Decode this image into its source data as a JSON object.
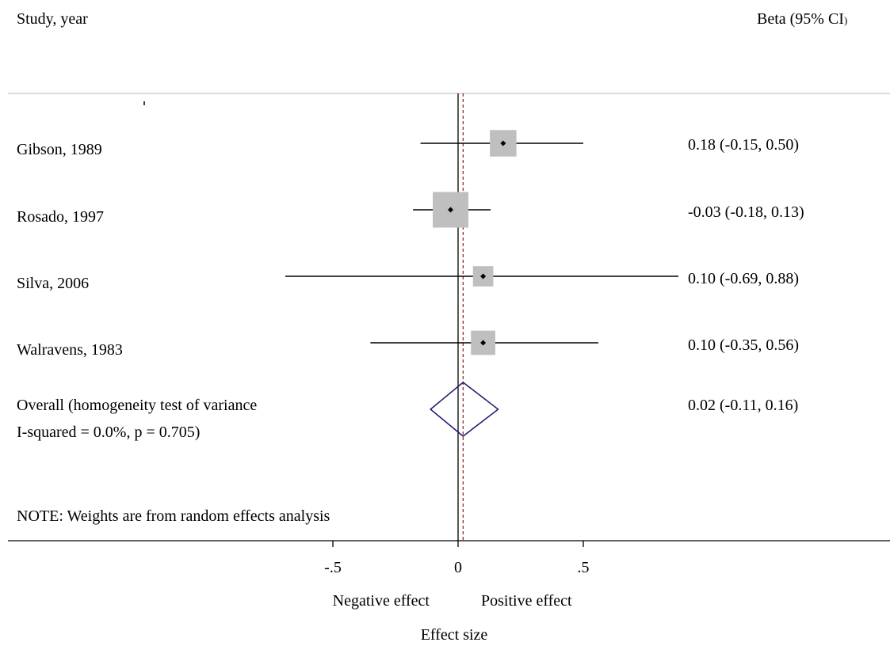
{
  "chart_data": {
    "type": "forest",
    "header_left": "Study, year",
    "header_right_main": "Beta (95% CI",
    "header_right_paren": ")",
    "studies": [
      {
        "label": "Gibson, 1989",
        "estimate": 0.18,
        "lower": -0.15,
        "upper": 0.5,
        "ci_text": "0.18 (-0.15, 0.50)",
        "weight_rel": 0.45
      },
      {
        "label": "Rosado, 1997",
        "estimate": -0.03,
        "lower": -0.18,
        "upper": 0.13,
        "ci_text": "-0.03 (-0.18, 0.13)",
        "weight_rel": 1.0
      },
      {
        "label": "Silva, 2006",
        "estimate": 0.1,
        "lower": -0.69,
        "upper": 0.88,
        "ci_text": "0.10 (-0.69, 0.88)",
        "weight_rel": 0.2
      },
      {
        "label": "Walravens, 1983",
        "estimate": 0.1,
        "lower": -0.35,
        "upper": 0.56,
        "ci_text": "0.10 (-0.35, 0.56)",
        "weight_rel": 0.35
      }
    ],
    "overall": {
      "label_line1": "Overall  (homogeneity test of variance",
      "label_line2": "I-squared  = 0.0%, p = 0.705)",
      "estimate": 0.02,
      "lower": -0.11,
      "upper": 0.16,
      "ci_text": "0.02 (-0.11, 0.16)"
    },
    "note": "NOTE: Weights are from random effects analysis",
    "xticks": [
      {
        "value": -0.5,
        "label": "-.5"
      },
      {
        "value": 0,
        "label": "0"
      },
      {
        "value": 0.5,
        "label": ".5"
      }
    ],
    "direction_left": "Negative effect",
    "direction_right": "Positive effect",
    "xlabel": "Effect size",
    "null_value": 0,
    "colors": {
      "box": "#bfbfbf",
      "diamond": "#1a1a6e",
      "overall_line": "#8b1a1a",
      "axis": "#000000"
    }
  }
}
